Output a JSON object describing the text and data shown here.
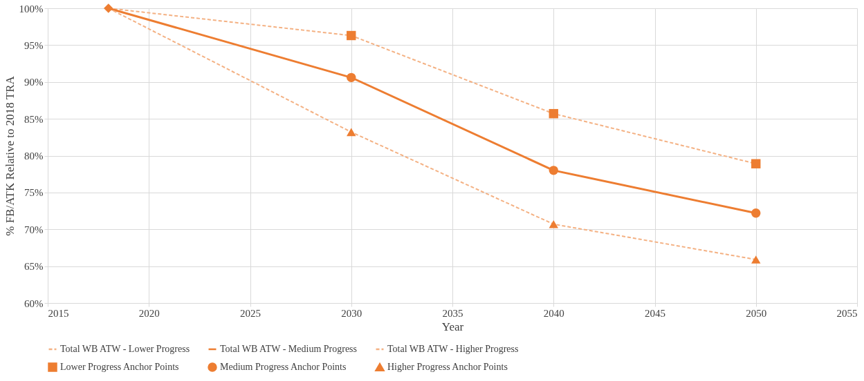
{
  "chart_data": {
    "type": "line",
    "xlabel": "Year",
    "ylabel": "% FB/ATK Relative to 2018 TRA",
    "xlim": [
      2015,
      2055
    ],
    "xticks": [
      2015,
      2020,
      2025,
      2030,
      2035,
      2040,
      2045,
      2050,
      2055
    ],
    "ylim": [
      60,
      100
    ],
    "yticks": [
      {
        "value": 60,
        "label": "60%"
      },
      {
        "value": 65,
        "label": "65%"
      },
      {
        "value": 70,
        "label": "70%"
      },
      {
        "value": 75,
        "label": "75%"
      },
      {
        "value": 80,
        "label": "80%"
      },
      {
        "value": 85,
        "label": "85%"
      },
      {
        "value": 90,
        "label": "90%"
      },
      {
        "value": 95,
        "label": "95%"
      },
      {
        "value": 100,
        "label": "100%"
      }
    ],
    "grid": true,
    "legend": "bottom",
    "series": [
      {
        "name": "Total WB ATW - Lower Progress",
        "color": "#f4b183",
        "line_style": "dashed",
        "marker": "none",
        "x": [
          2018,
          2030,
          2040,
          2050
        ],
        "values": [
          100,
          96.3,
          85.7,
          78.9
        ]
      },
      {
        "name": "Total WB ATW - Medium Progress",
        "color": "#ed7d31",
        "line_style": "solid",
        "marker": "none",
        "x": [
          2018,
          2030,
          2040,
          2050
        ],
        "values": [
          100,
          90.6,
          78.0,
          72.2
        ]
      },
      {
        "name": "Total WB ATW - Higher Progress",
        "color": "#f4b183",
        "line_style": "dashed",
        "marker": "none",
        "x": [
          2018,
          2030,
          2040,
          2050
        ],
        "values": [
          100,
          83.2,
          70.7,
          65.9
        ]
      },
      {
        "name": "Lower Progress Anchor Points",
        "type": "scatter",
        "color": "#ed7d31",
        "marker": "square",
        "x": [
          2030,
          2040,
          2050
        ],
        "values": [
          96.3,
          85.7,
          78.9
        ]
      },
      {
        "name": "Medium Progress Anchor Points",
        "type": "scatter",
        "color": "#ed7d31",
        "marker": "circle",
        "x": [
          2030,
          2040,
          2050
        ],
        "values": [
          90.6,
          78.0,
          72.2
        ]
      },
      {
        "name": "Higher Progress Anchor Points",
        "type": "scatter",
        "color": "#ed7d31",
        "marker": "triangle",
        "x": [
          2030,
          2040,
          2050
        ],
        "values": [
          83.2,
          70.7,
          65.9
        ]
      },
      {
        "type": "scatter",
        "color": "#ed7d31",
        "marker": "diamond",
        "x": [
          2018
        ],
        "values": [
          100
        ]
      }
    ]
  }
}
